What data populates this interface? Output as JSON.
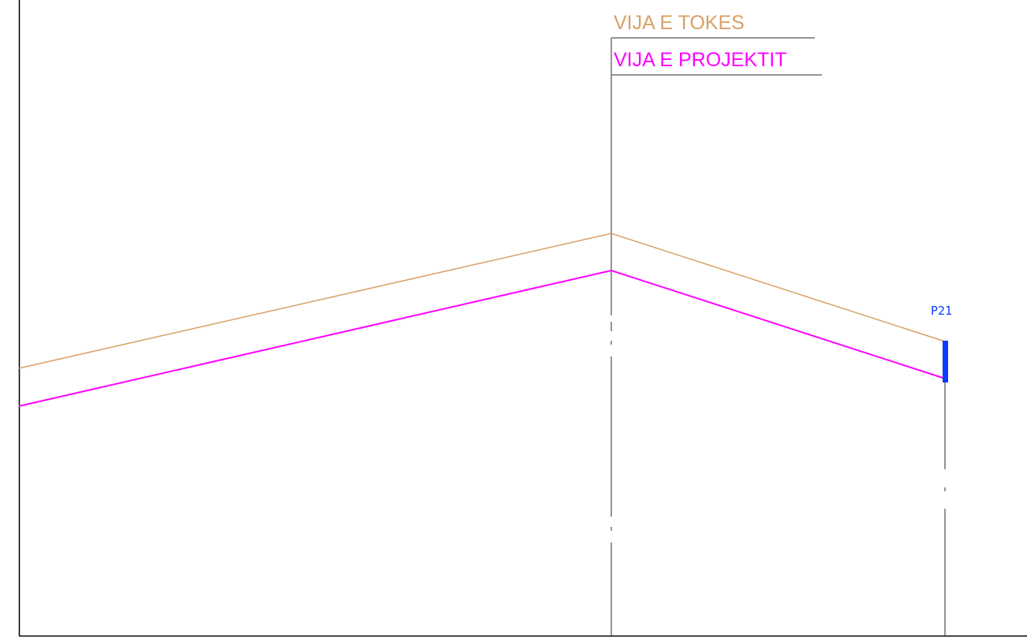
{
  "legend": {
    "ground_line_label": "VIJA E TOKES",
    "project_line_label": "VIJA E PROJEKTIT"
  },
  "points": [
    {
      "id": "p21",
      "label": "P21"
    }
  ],
  "colors": {
    "background": "#ffffff",
    "ground_line": "#d9a066",
    "project_line": "#ff00ff",
    "structure_line": "#707070",
    "point_marker": "#0a3cff",
    "point_label": "#0a3cff",
    "frame": "#000000"
  }
}
